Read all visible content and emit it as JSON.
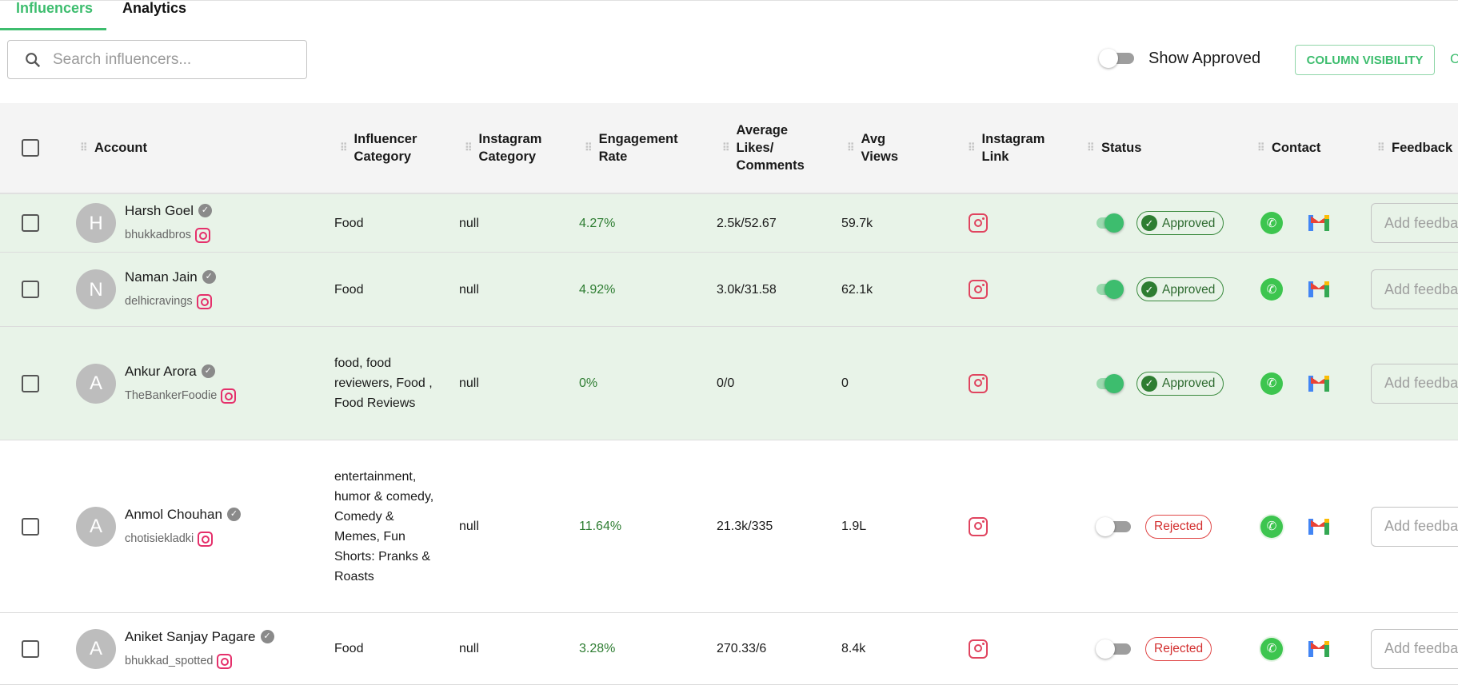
{
  "tabs": [
    {
      "label": "Influencers",
      "active": true
    },
    {
      "label": "Analytics",
      "active": false
    }
  ],
  "search": {
    "placeholder": "Search influencers..."
  },
  "toolbar": {
    "show_approved_label": "Show Approved",
    "show_approved_on": false,
    "column_visibility_label": "COLUMN VISIBILITY",
    "cut_off_label": "C"
  },
  "columns": [
    "Account",
    "Influencer Category",
    "Instagram Category",
    "Engagement Rate",
    "Average Likes/ Comments",
    "Avg Views",
    "Instagram Link",
    "Status",
    "Contact",
    "Feedback"
  ],
  "colors": {
    "accent": "#3dbd6e",
    "approved_row": "#e8f3e8",
    "engagement": "#2e7d32",
    "rejected": "#d32f2f"
  },
  "feedback_placeholder": "Add feedback",
  "rows": [
    {
      "initial": "H",
      "name": "Harsh Goel",
      "handle": "bhukkadbros",
      "influencer_category": "Food",
      "instagram_category": "null",
      "engagement": "4.27%",
      "likes_comments": "2.5k/52.67",
      "views": "59.7k",
      "status": "Approved",
      "toggle_on": true
    },
    {
      "initial": "N",
      "name": "Naman Jain",
      "handle": "delhicravings",
      "influencer_category": "Food",
      "instagram_category": "null",
      "engagement": "4.92%",
      "likes_comments": "3.0k/31.58",
      "views": "62.1k",
      "status": "Approved",
      "toggle_on": true
    },
    {
      "initial": "A",
      "name": "Ankur Arora",
      "handle": "TheBankerFoodie",
      "influencer_category": "food, food reviewers, Food , Food Reviews",
      "instagram_category": "null",
      "engagement": "0%",
      "likes_comments": "0/0",
      "views": "0",
      "status": "Approved",
      "toggle_on": true
    },
    {
      "initial": "A",
      "name": "Anmol Chouhan",
      "handle": "chotisiekladki",
      "influencer_category": "entertainment, humor & comedy, Comedy & Memes, Fun Shorts: Pranks & Roasts",
      "instagram_category": "null",
      "engagement": "11.64%",
      "likes_comments": "21.3k/335",
      "views": "1.9L",
      "status": "Rejected",
      "toggle_on": false
    },
    {
      "initial": "A",
      "name": "Aniket Sanjay Pagare",
      "handle": "bhukkad_spotted",
      "influencer_category": "Food",
      "instagram_category": "null",
      "engagement": "3.28%",
      "likes_comments": "270.33/6",
      "views": "8.4k",
      "status": "Rejected",
      "toggle_on": false
    }
  ]
}
